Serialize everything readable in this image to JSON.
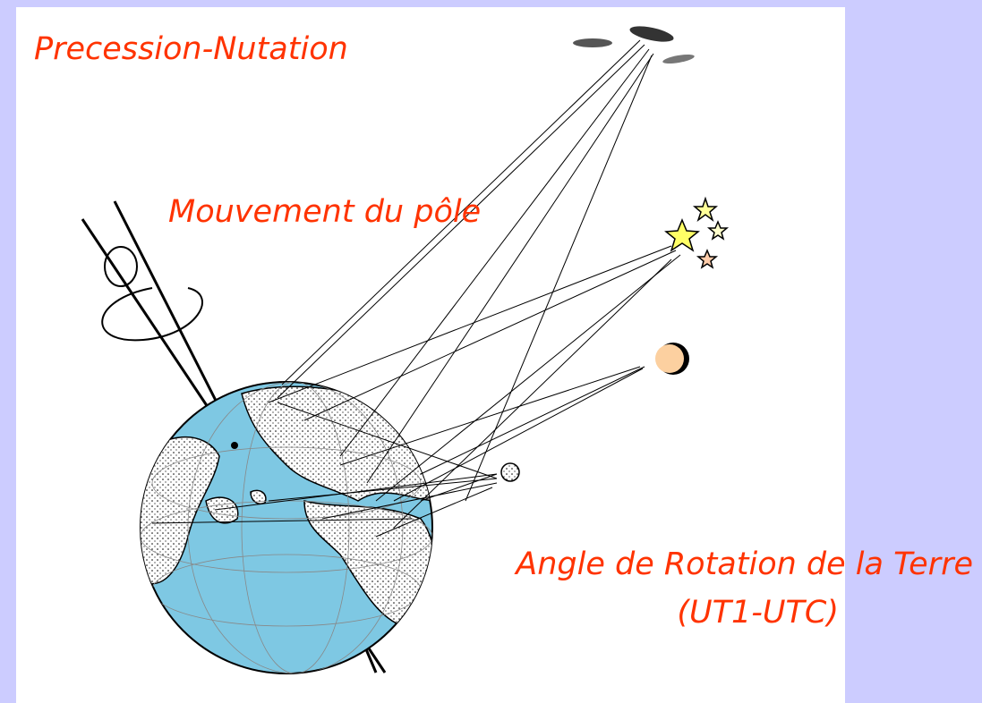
{
  "labels": {
    "precession": "Precession-Nutation",
    "polar_motion": "Mouvement du pôle",
    "rotation_angle": "Angle de Rotation de la Terre",
    "ut1_utc": "(UT1-UTC)"
  }
}
